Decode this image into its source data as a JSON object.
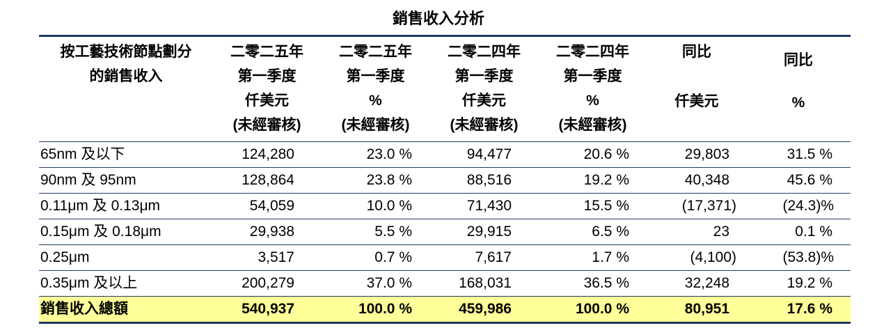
{
  "document": {
    "title": "銷售收入分析"
  },
  "table": {
    "headers": [
      {
        "lines": [
          "按工藝技術節點劃分",
          "的銷售收入"
        ]
      },
      {
        "lines": [
          "二零二五年",
          "第一季度",
          "仟美元",
          "(未經審核)"
        ]
      },
      {
        "lines": [
          "二零二五年",
          "第一季度",
          "%",
          "(未經審核)"
        ]
      },
      {
        "lines": [
          "二零二四年",
          "第一季度",
          "仟美元",
          "(未經審核)"
        ]
      },
      {
        "lines": [
          "二零二四年",
          "第一季度",
          "%",
          "(未經審核)"
        ]
      },
      {
        "lines": [
          "同比",
          "仟美元"
        ]
      },
      {
        "lines": [
          "同比",
          "%"
        ]
      }
    ],
    "rows": [
      {
        "label": "65nm 及以下",
        "values": [
          "124,280",
          "23.0 %",
          "94,477",
          "20.6 %",
          "29,803",
          "31.5 %"
        ]
      },
      {
        "label": "90nm 及 95nm",
        "values": [
          "128,864",
          "23.8 %",
          "88,516",
          "19.2 %",
          "40,348",
          "45.6 %"
        ]
      },
      {
        "label": "0.11μm 及 0.13μm",
        "values": [
          "54,059",
          "10.0 %",
          "71,430",
          "15.5 %",
          "(17,371)",
          "(24.3)%"
        ]
      },
      {
        "label": "0.15μm 及 0.18μm",
        "values": [
          "29,938",
          "5.5 %",
          "29,915",
          "6.5 %",
          "23",
          "0.1 %"
        ]
      },
      {
        "label": "0.25μm",
        "values": [
          "3,517",
          "0.7 %",
          "7,617",
          "1.7 %",
          "(4,100)",
          "(53.8)%"
        ]
      },
      {
        "label": "0.35μm 及以上",
        "values": [
          "200,279",
          "37.0 %",
          "168,031",
          "36.5 %",
          "32,248",
          "19.2 %"
        ]
      }
    ],
    "total": {
      "label": "銷售收入總額",
      "values": [
        "540,937",
        "100.0 %",
        "459,986",
        "100.0 %",
        "80,951",
        "17.6 %"
      ]
    },
    "colors": {
      "rule": "#1F3864",
      "total_highlight": "#FFFF99"
    }
  }
}
